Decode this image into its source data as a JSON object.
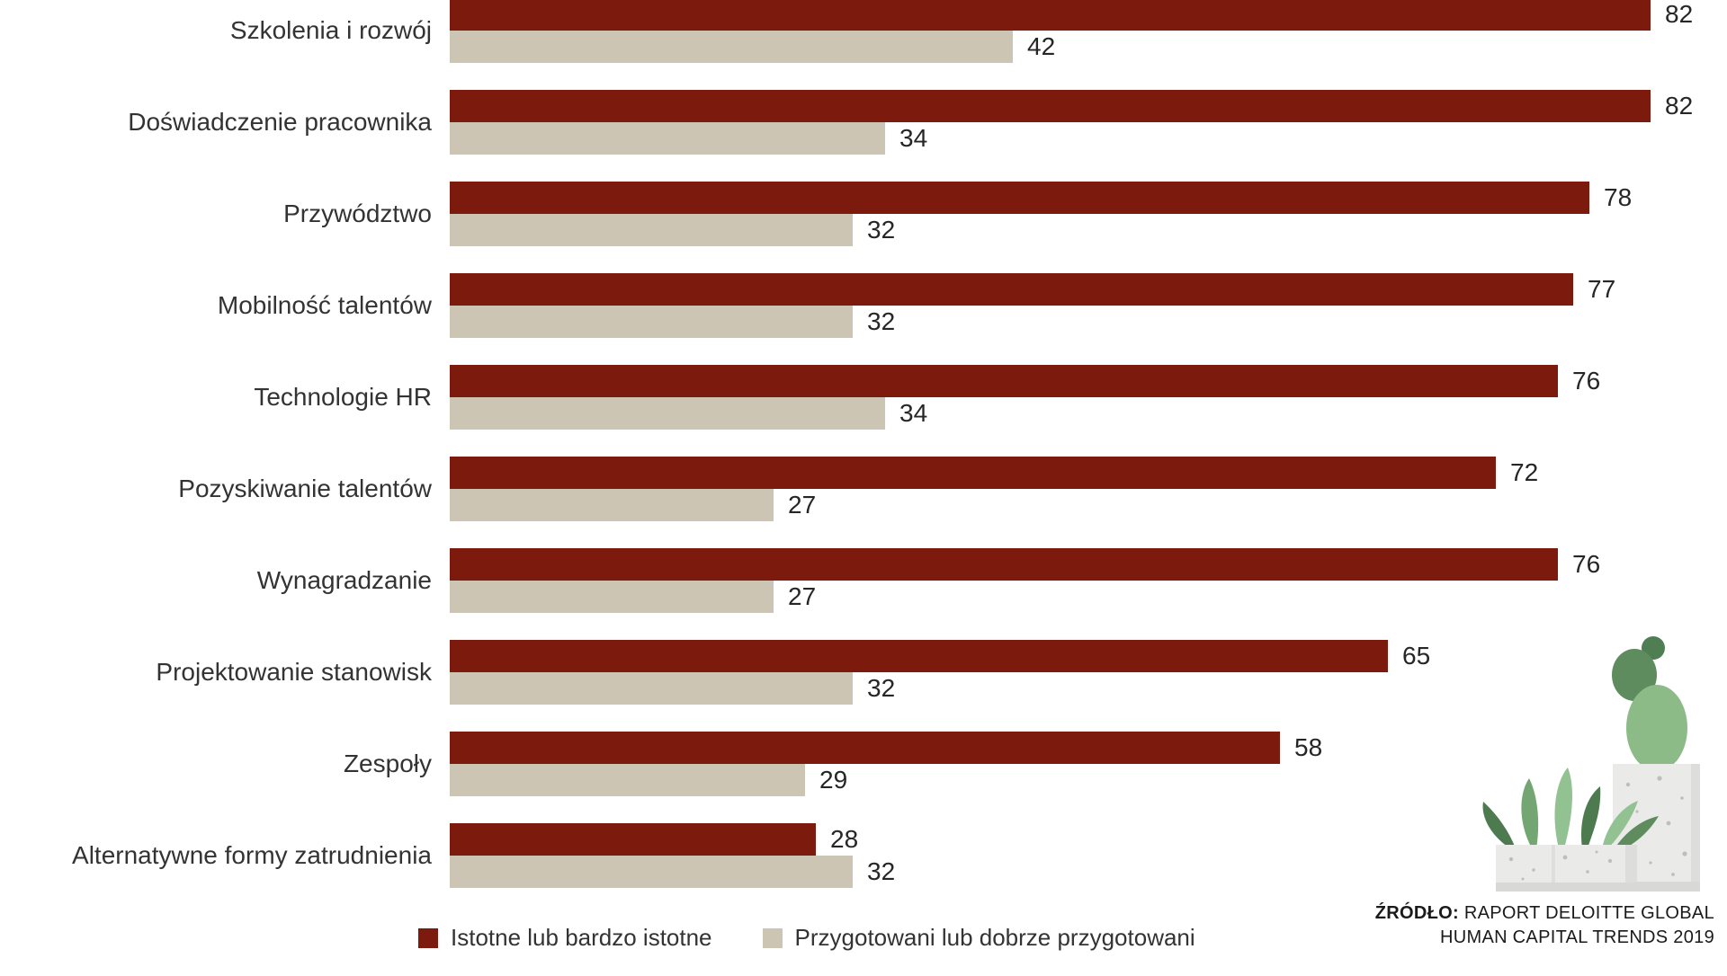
{
  "chart_data": {
    "type": "bar",
    "orientation": "horizontal",
    "title": "",
    "categories": [
      "Szkolenia i rozwój",
      "Doświadczenie pracownika",
      "Przywództwo",
      "Mobilność talentów",
      "Technologie HR",
      "Pozyskiwanie talentów",
      "Wynagradzanie",
      "Projektowanie stanowisk",
      "Zespoły",
      "Alternatywne formy zatrudnienia"
    ],
    "series": [
      {
        "name": "Istotne lub bardzo istotne",
        "color": "#7B1A0D",
        "values": [
          82,
          82,
          78,
          77,
          76,
          72,
          76,
          65,
          58,
          28
        ]
      },
      {
        "name": "Przygotowani lub dobrze przygotowani",
        "color": "#CDC5B4",
        "values": [
          42,
          34,
          32,
          32,
          34,
          27,
          27,
          32,
          29,
          32
        ]
      }
    ],
    "value_labels": "end-of-bar",
    "axes_hidden": true,
    "grid": false,
    "legend_position": "bottom-left",
    "xlim": [
      0,
      90
    ]
  },
  "legend": {
    "items": [
      {
        "label": "Istotne lub bardzo istotne",
        "color": "#7B1A0D"
      },
      {
        "label": "Przygotowani lub dobrze przygotowani",
        "color": "#CDC5B4"
      }
    ]
  },
  "source": {
    "label": "ŹRÓDŁO:",
    "line1": "RAPORT DELOITTE GLOBAL",
    "line2": "HUMAN CAPITAL TRENDS 2019"
  },
  "colors": {
    "bar_primary": "#7B1A0D",
    "bar_secondary": "#CDC5B4",
    "text": "#333333",
    "background": "#FFFFFF"
  }
}
